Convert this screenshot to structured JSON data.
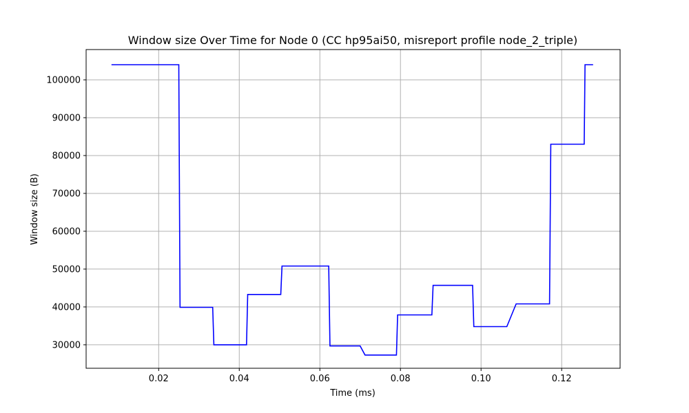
{
  "chart_data": {
    "type": "line",
    "title": "Window size Over Time for Node 0 (CC hp95ai50, misreport profile node_2_triple)",
    "xlabel": "Time (ms)",
    "ylabel": "Window size (B)",
    "xlim": [
      0.002,
      0.1345
    ],
    "ylim": [
      23800,
      108000
    ],
    "xticks": [
      0.02,
      0.04,
      0.06,
      0.08,
      0.1,
      0.12
    ],
    "xtick_labels": [
      "0.02",
      "0.04",
      "0.06",
      "0.08",
      "0.10",
      "0.12"
    ],
    "yticks": [
      30000,
      40000,
      50000,
      60000,
      70000,
      80000,
      90000,
      100000
    ],
    "ytick_labels": [
      "30000",
      "40000",
      "50000",
      "60000",
      "70000",
      "80000",
      "90000",
      "100000"
    ],
    "grid": true,
    "series": [
      {
        "color": "#0000ff",
        "x": [
          0.0083,
          0.025,
          0.0253,
          0.0334,
          0.0337,
          0.0418,
          0.0421,
          0.0503,
          0.0506,
          0.0622,
          0.0625,
          0.07,
          0.0712,
          0.079,
          0.0793,
          0.0878,
          0.0881,
          0.0979,
          0.0982,
          0.1064,
          0.1087,
          0.117,
          0.1173,
          0.1256,
          0.1258,
          0.1278
        ],
        "y": [
          104000,
          104000,
          39900,
          39900,
          30000,
          30000,
          43300,
          43300,
          50800,
          50800,
          29700,
          29700,
          27300,
          27300,
          37900,
          37900,
          45700,
          45700,
          34800,
          34800,
          40800,
          40800,
          83000,
          83000,
          104000,
          104000
        ]
      }
    ]
  }
}
